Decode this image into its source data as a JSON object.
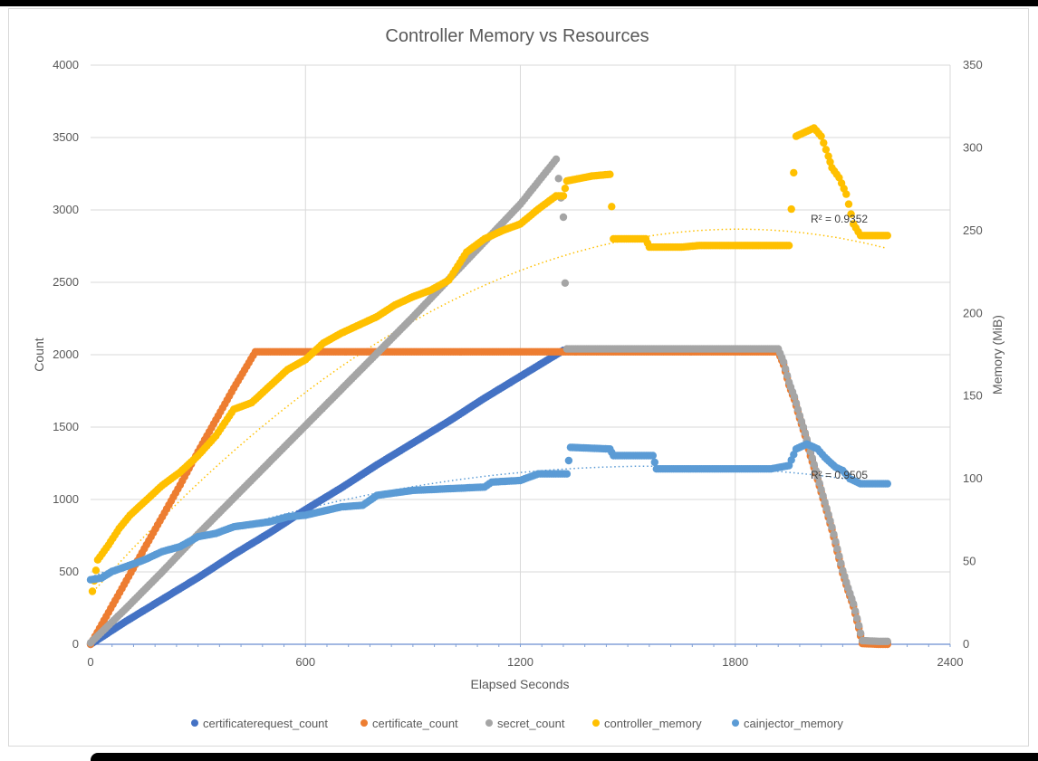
{
  "chart_data": {
    "type": "scatter",
    "title": "Controller Memory vs Resources",
    "xlabel": "Elapsed Seconds",
    "ylabel": "Count",
    "y2label": "Memory (MiB)",
    "xlim": [
      0,
      2400
    ],
    "ylim": [
      0,
      4000
    ],
    "y2lim": [
      0,
      350
    ],
    "x_ticks": [
      0,
      600,
      1200,
      1800,
      2400
    ],
    "y_ticks": [
      0,
      500,
      1000,
      1500,
      2000,
      2500,
      3000,
      3500,
      4000
    ],
    "y2_ticks": [
      0,
      50,
      100,
      150,
      200,
      250,
      300,
      350
    ],
    "grid": true,
    "legend_position": "bottom",
    "series": [
      {
        "name": "certificaterequest_count",
        "axis": "left",
        "color": "#4472c4",
        "points": [
          [
            0,
            0
          ],
          [
            100,
            160
          ],
          [
            200,
            310
          ],
          [
            300,
            460
          ],
          [
            400,
            620
          ],
          [
            500,
            770
          ],
          [
            600,
            930
          ],
          [
            700,
            1080
          ],
          [
            800,
            1240
          ],
          [
            900,
            1390
          ],
          [
            1000,
            1540
          ],
          [
            1100,
            1700
          ],
          [
            1200,
            1850
          ],
          [
            1320,
            2030
          ],
          [
            1500,
            2030
          ],
          [
            1700,
            2030
          ],
          [
            1920,
            2030
          ],
          [
            1935,
            1940
          ],
          [
            1950,
            1800
          ],
          [
            1965,
            1700
          ],
          [
            1980,
            1570
          ],
          [
            1995,
            1450
          ],
          [
            2010,
            1320
          ],
          [
            2025,
            1190
          ],
          [
            2040,
            1060
          ],
          [
            2055,
            930
          ],
          [
            2070,
            800
          ],
          [
            2085,
            650
          ],
          [
            2100,
            500
          ],
          [
            2115,
            380
          ],
          [
            2130,
            270
          ],
          [
            2145,
            120
          ],
          [
            2155,
            20
          ],
          [
            2200,
            10
          ],
          [
            2225,
            10
          ]
        ]
      },
      {
        "name": "certificate_count",
        "axis": "left",
        "color": "#ed7d31",
        "points": [
          [
            0,
            0
          ],
          [
            50,
            220
          ],
          [
            100,
            440
          ],
          [
            150,
            660
          ],
          [
            200,
            880
          ],
          [
            250,
            1100
          ],
          [
            300,
            1330
          ],
          [
            350,
            1550
          ],
          [
            400,
            1770
          ],
          [
            460,
            2020
          ],
          [
            600,
            2020
          ],
          [
            800,
            2020
          ],
          [
            1000,
            2020
          ],
          [
            1200,
            2020
          ],
          [
            1400,
            2020
          ],
          [
            1600,
            2020
          ],
          [
            1800,
            2020
          ],
          [
            1920,
            2020
          ],
          [
            1935,
            1930
          ],
          [
            1950,
            1790
          ],
          [
            1965,
            1690
          ],
          [
            1980,
            1560
          ],
          [
            1995,
            1440
          ],
          [
            2010,
            1300
          ],
          [
            2025,
            1180
          ],
          [
            2040,
            1050
          ],
          [
            2055,
            920
          ],
          [
            2070,
            790
          ],
          [
            2085,
            640
          ],
          [
            2100,
            490
          ],
          [
            2115,
            370
          ],
          [
            2130,
            260
          ],
          [
            2145,
            110
          ],
          [
            2155,
            5
          ],
          [
            2200,
            0
          ],
          [
            2225,
            0
          ]
        ]
      },
      {
        "name": "secret_count",
        "axis": "left",
        "color": "#a5a5a5",
        "points": [
          [
            0,
            10
          ],
          [
            100,
            250
          ],
          [
            200,
            500
          ],
          [
            300,
            760
          ],
          [
            400,
            1010
          ],
          [
            500,
            1260
          ],
          [
            600,
            1510
          ],
          [
            700,
            1760
          ],
          [
            800,
            2010
          ],
          [
            900,
            2260
          ],
          [
            1000,
            2520
          ],
          [
            1100,
            2780
          ],
          [
            1200,
            3040
          ],
          [
            1300,
            3350
          ],
          [
            1320,
            2950
          ],
          [
            1330,
            2040
          ],
          [
            1500,
            2040
          ],
          [
            1700,
            2040
          ],
          [
            1920,
            2040
          ],
          [
            1935,
            1950
          ],
          [
            1950,
            1810
          ],
          [
            1965,
            1710
          ],
          [
            1980,
            1580
          ],
          [
            1995,
            1460
          ],
          [
            2010,
            1330
          ],
          [
            2025,
            1200
          ],
          [
            2040,
            1070
          ],
          [
            2055,
            940
          ],
          [
            2070,
            810
          ],
          [
            2085,
            660
          ],
          [
            2100,
            510
          ],
          [
            2115,
            390
          ],
          [
            2130,
            280
          ],
          [
            2145,
            130
          ],
          [
            2155,
            25
          ],
          [
            2200,
            20
          ],
          [
            2225,
            20
          ]
        ]
      },
      {
        "name": "controller_memory",
        "axis": "right",
        "color": "#ffc000",
        "points": [
          [
            5,
            32
          ],
          [
            20,
            51
          ],
          [
            50,
            60
          ],
          [
            80,
            70
          ],
          [
            110,
            78
          ],
          [
            150,
            86
          ],
          [
            200,
            96
          ],
          [
            250,
            104
          ],
          [
            300,
            114
          ],
          [
            350,
            126
          ],
          [
            400,
            142
          ],
          [
            450,
            146
          ],
          [
            500,
            156
          ],
          [
            550,
            166
          ],
          [
            600,
            172
          ],
          [
            650,
            182
          ],
          [
            700,
            188
          ],
          [
            750,
            193
          ],
          [
            800,
            198
          ],
          [
            850,
            205
          ],
          [
            900,
            210
          ],
          [
            950,
            214
          ],
          [
            1000,
            220
          ],
          [
            1050,
            237
          ],
          [
            1100,
            245
          ],
          [
            1150,
            250
          ],
          [
            1200,
            254
          ],
          [
            1250,
            263
          ],
          [
            1300,
            271
          ],
          [
            1320,
            271
          ],
          [
            1330,
            280
          ],
          [
            1400,
            283
          ],
          [
            1450,
            284
          ],
          [
            1460,
            245
          ],
          [
            1550,
            245
          ],
          [
            1560,
            240
          ],
          [
            1650,
            240
          ],
          [
            1700,
            241
          ],
          [
            1750,
            241
          ],
          [
            1800,
            241
          ],
          [
            1900,
            241
          ],
          [
            1950,
            241
          ],
          [
            1970,
            307
          ],
          [
            2000,
            310
          ],
          [
            2020,
            312
          ],
          [
            2040,
            307
          ],
          [
            2060,
            295
          ],
          [
            2070,
            288
          ],
          [
            2090,
            282
          ],
          [
            2110,
            272
          ],
          [
            2130,
            254
          ],
          [
            2150,
            247
          ],
          [
            2225,
            247
          ]
        ]
      },
      {
        "name": "cainjector_memory",
        "axis": "right",
        "color": "#5b9bd5",
        "points": [
          [
            0,
            39
          ],
          [
            30,
            40
          ],
          [
            60,
            44
          ],
          [
            100,
            47
          ],
          [
            150,
            51
          ],
          [
            200,
            56
          ],
          [
            250,
            59
          ],
          [
            300,
            65
          ],
          [
            350,
            67
          ],
          [
            400,
            71
          ],
          [
            500,
            74
          ],
          [
            550,
            77
          ],
          [
            600,
            78
          ],
          [
            700,
            83
          ],
          [
            760,
            84
          ],
          [
            800,
            90
          ],
          [
            900,
            93
          ],
          [
            1000,
            94
          ],
          [
            1100,
            95
          ],
          [
            1120,
            98
          ],
          [
            1200,
            99
          ],
          [
            1250,
            103
          ],
          [
            1330,
            103
          ],
          [
            1340,
            119
          ],
          [
            1450,
            118
          ],
          [
            1460,
            114
          ],
          [
            1570,
            114
          ],
          [
            1580,
            106
          ],
          [
            1700,
            106
          ],
          [
            1800,
            106
          ],
          [
            1900,
            106
          ],
          [
            1950,
            108
          ],
          [
            1970,
            118
          ],
          [
            2000,
            121
          ],
          [
            2030,
            118
          ],
          [
            2050,
            113
          ],
          [
            2080,
            107
          ],
          [
            2100,
            105
          ],
          [
            2120,
            100
          ],
          [
            2150,
            97
          ],
          [
            2225,
            97
          ]
        ]
      }
    ],
    "trendlines": [
      {
        "series": "controller_memory",
        "r2_label": "R² = 0.9352",
        "poly": [
          30,
          0.2442,
          -6.75e-05
        ],
        "x_range": [
          0,
          2225
        ]
      },
      {
        "series": "cainjector_memory",
        "r2_label": "R² = 0.9505",
        "poly": [
          40.5,
          0.08515,
          -2.7e-05
        ],
        "x_range": [
          0,
          2225
        ]
      }
    ]
  }
}
